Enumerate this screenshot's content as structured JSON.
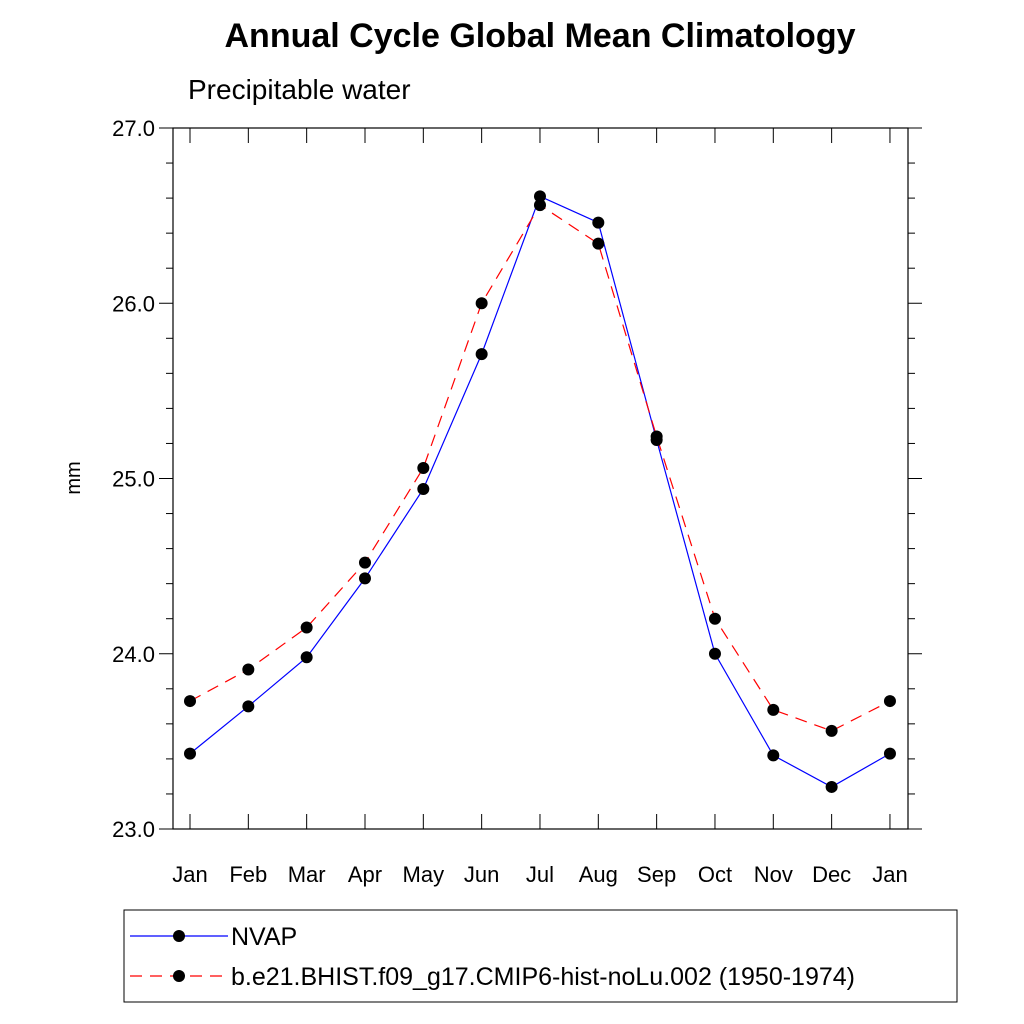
{
  "chart_data": {
    "type": "line",
    "title": "Annual Cycle Global Mean Climatology",
    "subtitle": "Precipitable water",
    "xlabel": "",
    "ylabel": "mm",
    "categories": [
      "Jan",
      "Feb",
      "Mar",
      "Apr",
      "May",
      "Jun",
      "Jul",
      "Aug",
      "Sep",
      "Oct",
      "Nov",
      "Dec",
      "Jan"
    ],
    "ylim": [
      23.0,
      27.0
    ],
    "yticks": [
      "23.0",
      "24.0",
      "25.0",
      "26.0",
      "27.0"
    ],
    "grid": false,
    "legend_position": "bottom",
    "series": [
      {
        "name": "NVAP",
        "color": "#0000ff",
        "line_style": "solid",
        "marker": "circle",
        "values": [
          23.43,
          23.7,
          23.98,
          24.43,
          24.94,
          25.71,
          26.61,
          26.46,
          25.22,
          24.0,
          23.42,
          23.24,
          23.43
        ]
      },
      {
        "name": "b.e21.BHIST.f09_g17.CMIP6-hist-noLu.002 (1950-1974)",
        "color": "#ff0000",
        "line_style": "dashed",
        "marker": "circle",
        "values": [
          23.73,
          23.91,
          24.15,
          24.52,
          25.06,
          26.0,
          26.56,
          26.34,
          25.24,
          24.2,
          23.68,
          23.56,
          23.73
        ]
      }
    ]
  }
}
